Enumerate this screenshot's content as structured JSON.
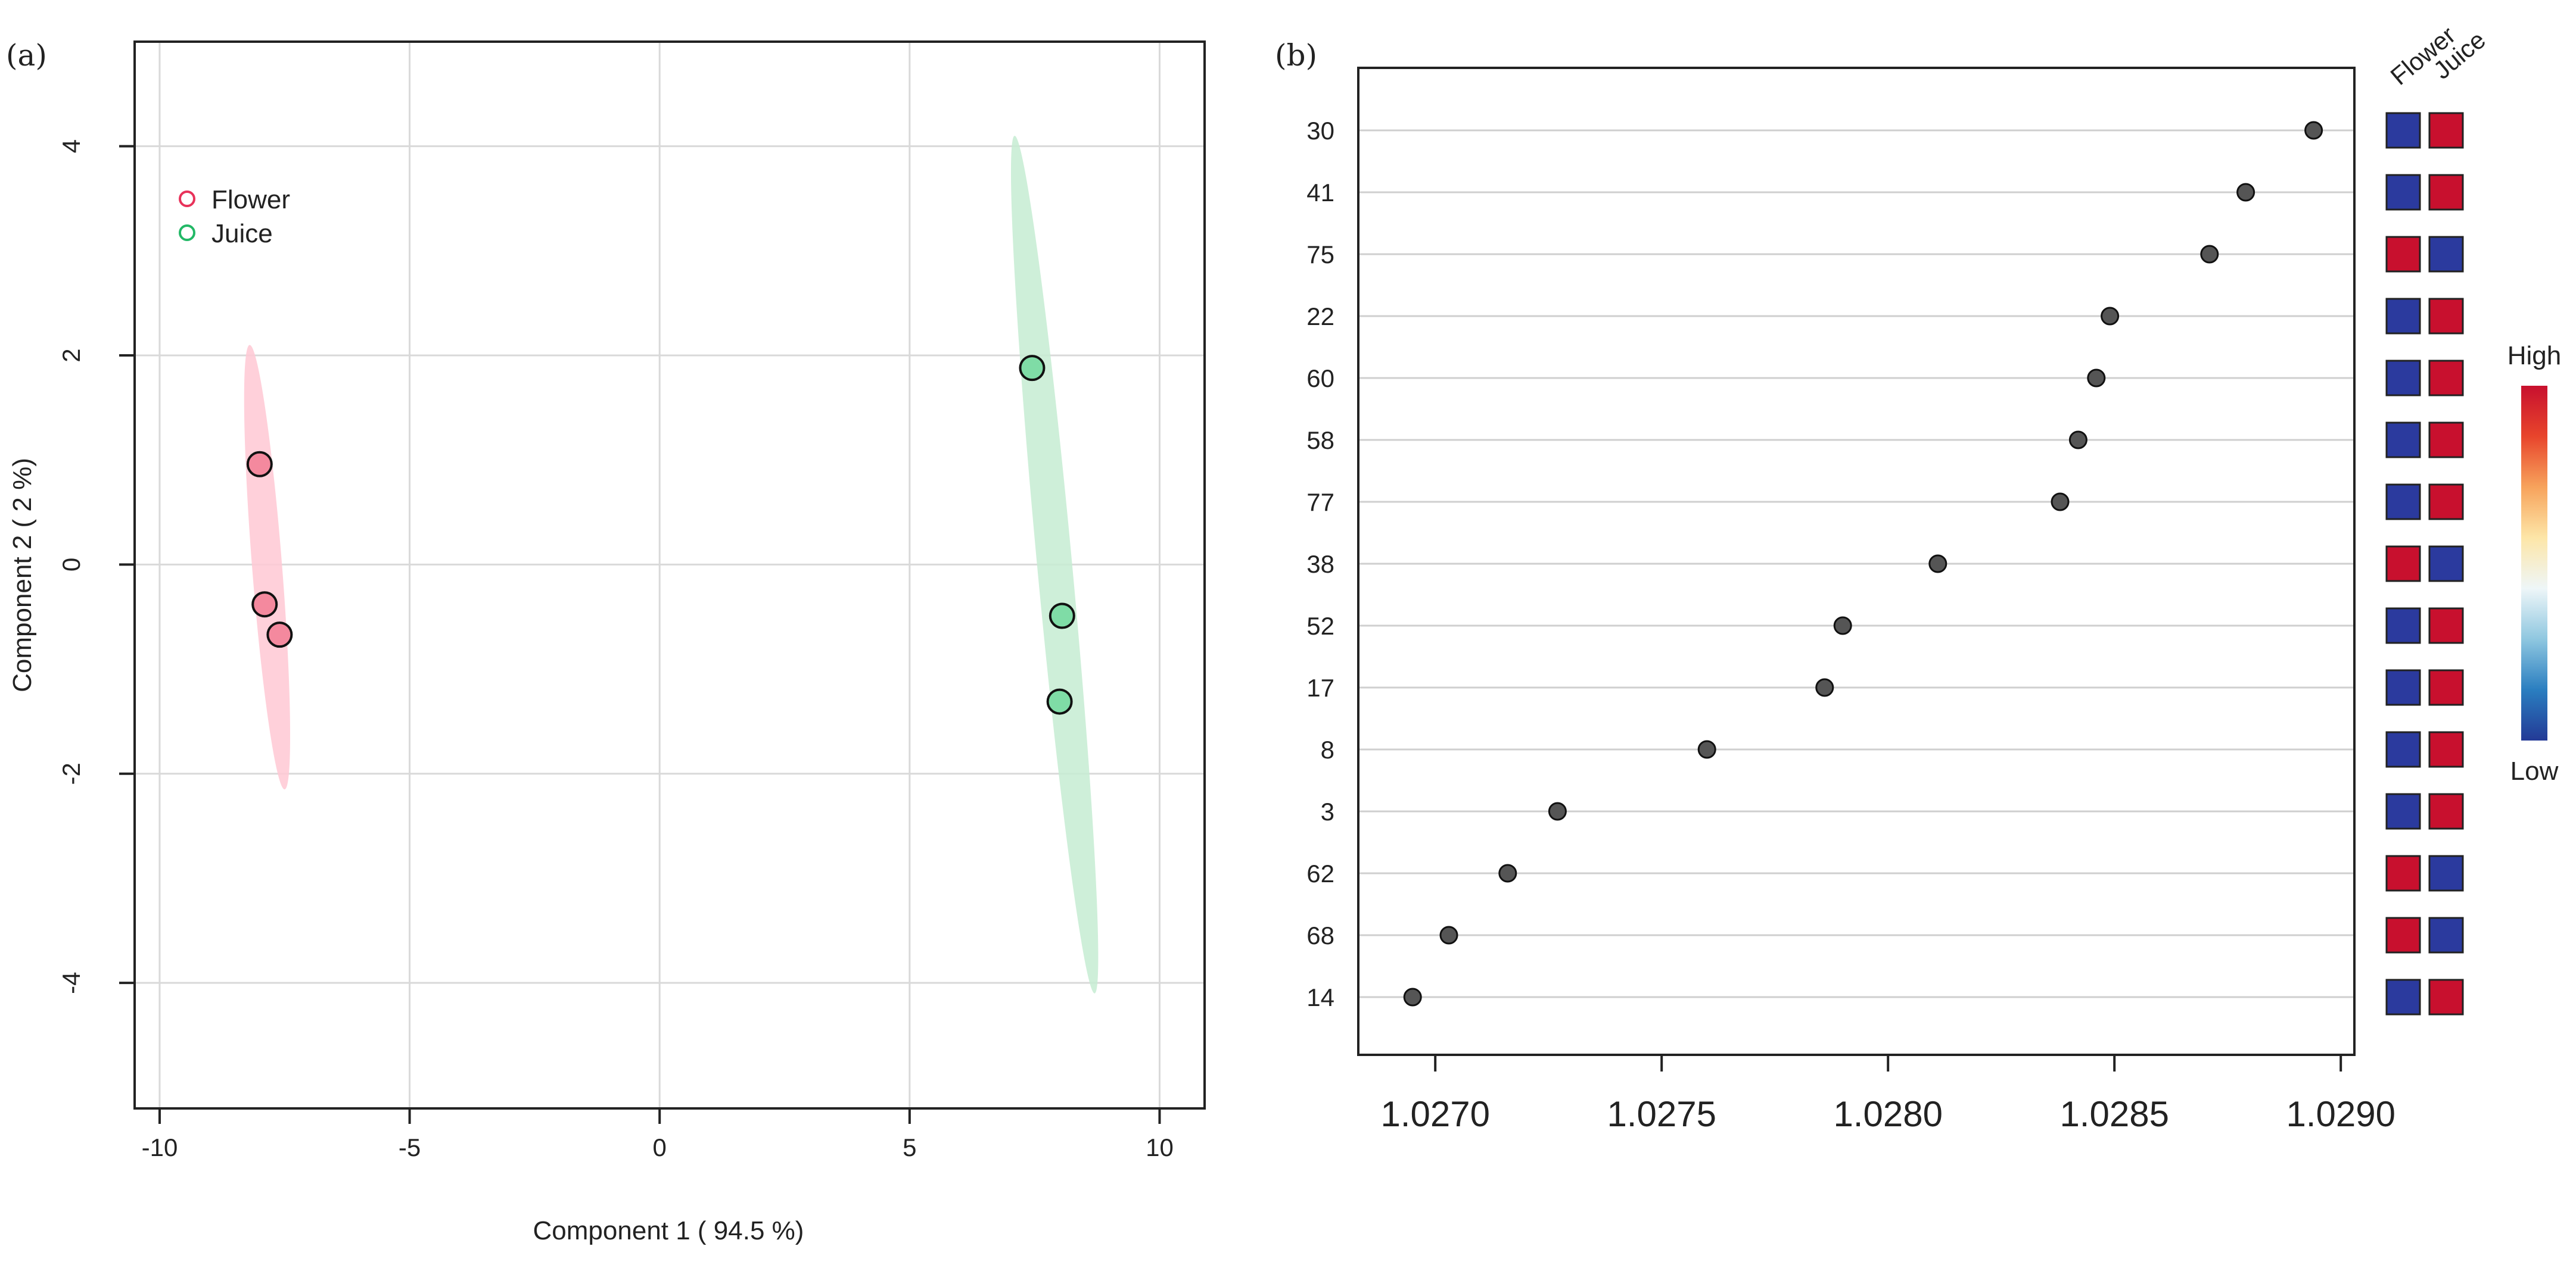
{
  "chart_data": [
    {
      "type": "scatter",
      "panel_label": "(a)",
      "xlabel": "Component 1 ( 94.5 %)",
      "ylabel": "Component 2 ( 2 %)",
      "xlim": [
        -10.5,
        10.9
      ],
      "ylim": [
        -5.2,
        5.0
      ],
      "xticks": [
        -10,
        -5,
        0,
        5,
        10
      ],
      "yticks": [
        -4,
        -2,
        0,
        2,
        4
      ],
      "xtick_labels": [
        "-10",
        "-5",
        "0",
        "5",
        "10"
      ],
      "ytick_labels": [
        "-4",
        "-2",
        "0",
        "2",
        "4"
      ],
      "grid": true,
      "legend": {
        "placement": "top-left",
        "entries": [
          "Flower",
          "Juice"
        ]
      },
      "series": [
        {
          "name": "Flower",
          "color": "#f4899e",
          "edge_color": "#e8325a",
          "ellipse_color": "#ffc8d4",
          "points": [
            [
              -8.0,
              0.96
            ],
            [
              -7.9,
              -0.38
            ],
            [
              -7.6,
              -0.67
            ]
          ],
          "ellipse": {
            "top": [
              -8.2,
              2.1
            ],
            "bottom": [
              -7.5,
              -2.15
            ],
            "half_width": 0.3
          }
        },
        {
          "name": "Juice",
          "color": "#7fdca6",
          "edge_color": "#22b866",
          "ellipse_color": "#c6ecd2",
          "points": [
            [
              7.45,
              1.88
            ],
            [
              8.05,
              -0.49
            ],
            [
              8.0,
              -1.31
            ]
          ],
          "ellipse": {
            "top": [
              7.1,
              4.1
            ],
            "bottom": [
              8.7,
              -4.1
            ],
            "half_width": 0.35
          }
        }
      ]
    },
    {
      "type": "scatter",
      "subtype": "vip-dot-plot",
      "panel_label": "(b)",
      "xlabel": "",
      "ylabel": "",
      "xlim": [
        1.02683,
        1.02903
      ],
      "xticks": [
        1.027,
        1.0275,
        1.028,
        1.0285,
        1.029
      ],
      "xtick_labels": [
        "1.0270",
        "1.0275",
        "1.0280",
        "1.0285",
        "1.0290"
      ],
      "grid": true,
      "features": [
        "30",
        "41",
        "75",
        "22",
        "60",
        "58",
        "77",
        "38",
        "52",
        "17",
        "8",
        "3",
        "62",
        "68",
        "14"
      ],
      "values": [
        1.02894,
        1.02879,
        1.02871,
        1.02849,
        1.02846,
        1.02842,
        1.02838,
        1.02811,
        1.0279,
        1.02786,
        1.0276,
        1.02727,
        1.02716,
        1.02703,
        1.02695
      ],
      "point_color": "#555555",
      "heatmap": {
        "columns": [
          "Flower",
          "Juice"
        ],
        "levels": [
          [
            "low",
            "high"
          ],
          [
            "low",
            "high"
          ],
          [
            "high",
            "low"
          ],
          [
            "low",
            "high"
          ],
          [
            "low",
            "high"
          ],
          [
            "low",
            "high"
          ],
          [
            "low",
            "high"
          ],
          [
            "high",
            "low"
          ],
          [
            "low",
            "high"
          ],
          [
            "low",
            "high"
          ],
          [
            "low",
            "high"
          ],
          [
            "low",
            "high"
          ],
          [
            "high",
            "low"
          ],
          [
            "high",
            "low"
          ],
          [
            "low",
            "high"
          ]
        ],
        "high_color": "#c8102e",
        "low_color": "#2b3a9e"
      },
      "colorbar": {
        "high_label": "High",
        "low_label": "Low",
        "colors": [
          "#c8102e",
          "#e8452c",
          "#f7a35c",
          "#fde6a8",
          "#eef6f8",
          "#8fc7e0",
          "#2a7ec0",
          "#233a96"
        ]
      }
    }
  ]
}
